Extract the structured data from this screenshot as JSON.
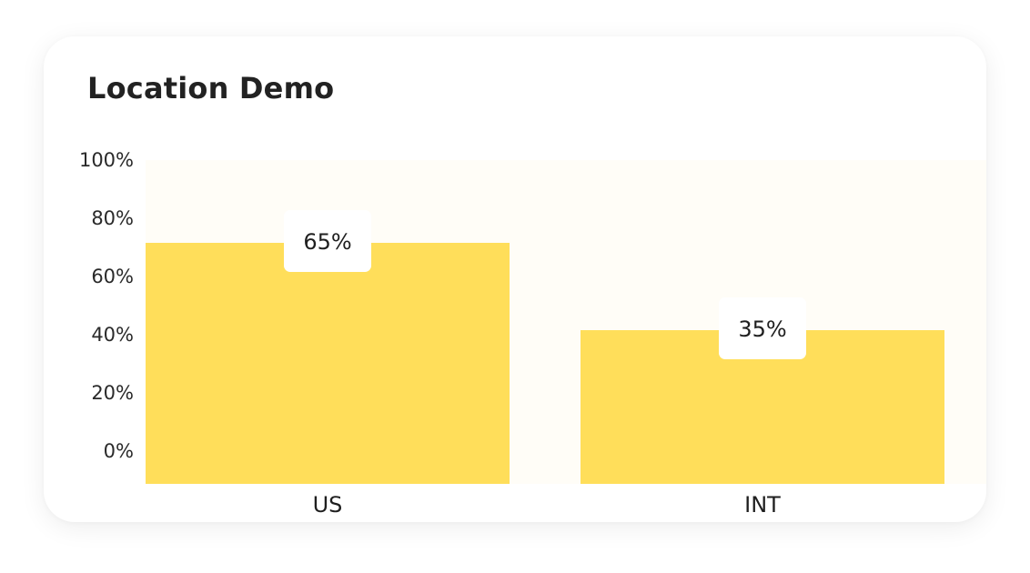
{
  "chart_data": {
    "type": "bar",
    "title": "Location Demo",
    "categories": [
      "US",
      "INT"
    ],
    "values": [
      65,
      35
    ],
    "data_labels": [
      "65%",
      "35%"
    ],
    "ylim": [
      0,
      100
    ],
    "yticks": [
      "0%",
      "20%",
      "40%",
      "60%",
      "80%",
      "100%"
    ],
    "colors": {
      "bar": "#FFDE5A",
      "plot_background": "#FFFDF7",
      "label_box": "#FFFFFF"
    },
    "grid": false
  }
}
